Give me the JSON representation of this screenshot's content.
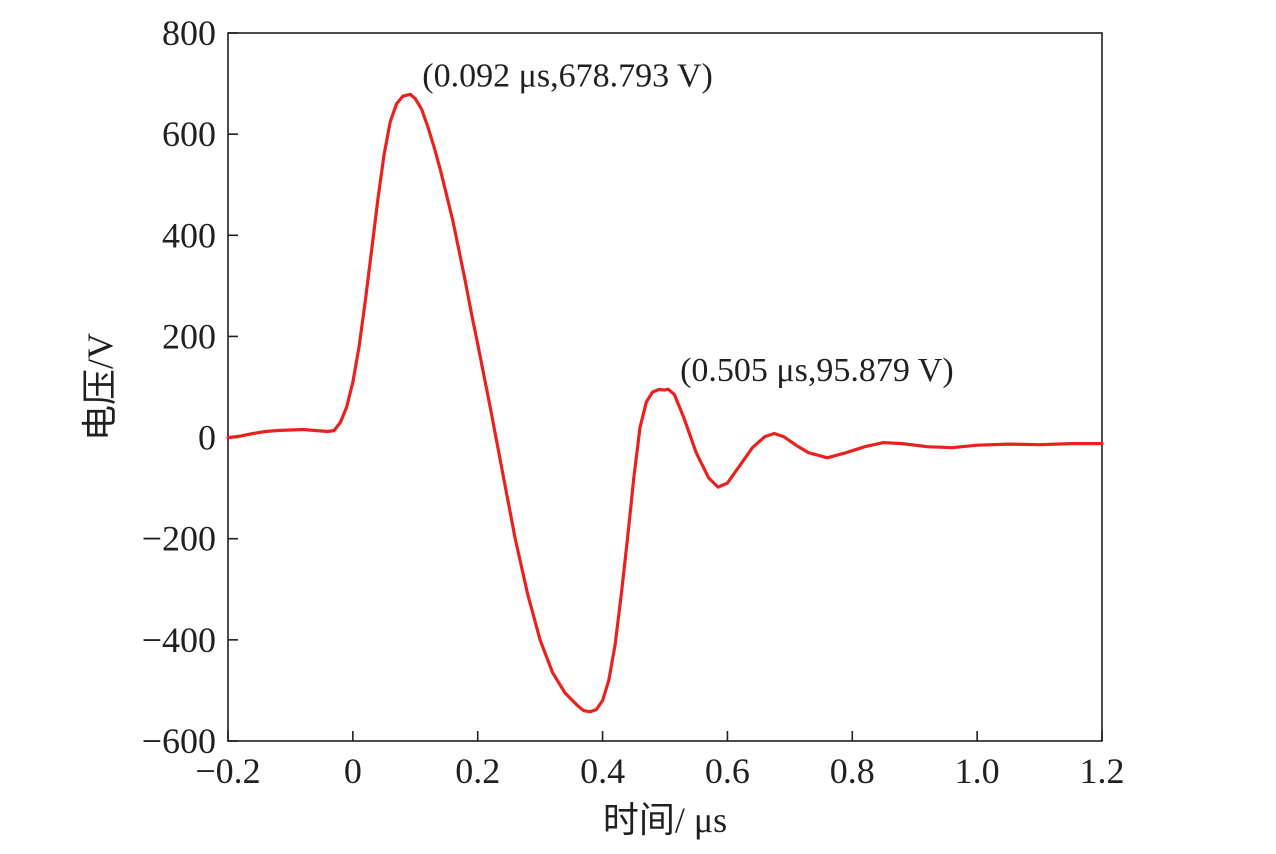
{
  "chart_data": {
    "type": "line",
    "title": "",
    "xlabel": "时间/ μs",
    "ylabel": "电压/V",
    "xlim": [
      -0.2,
      1.2
    ],
    "ylim": [
      -600,
      800
    ],
    "x_ticks": [
      -0.2,
      0,
      0.2,
      0.4,
      0.6,
      0.8,
      1.0,
      1.2
    ],
    "x_tick_labels": [
      "−0.2",
      "0",
      "0.2",
      "0.4",
      "0.6",
      "0.8",
      "1.0",
      "1.2"
    ],
    "y_ticks": [
      -600,
      -400,
      -200,
      0,
      200,
      400,
      600,
      800
    ],
    "y_tick_labels": [
      "−600",
      "−400",
      "−200",
      "0",
      "200",
      "400",
      "600",
      "800"
    ],
    "grid": false,
    "legend": "none",
    "series": [
      {
        "color": "#e8231f",
        "x": [
          -0.2,
          -0.18,
          -0.16,
          -0.14,
          -0.12,
          -0.1,
          -0.08,
          -0.06,
          -0.04,
          -0.03,
          -0.02,
          -0.01,
          0.0,
          0.01,
          0.02,
          0.03,
          0.04,
          0.05,
          0.06,
          0.07,
          0.08,
          0.092,
          0.1,
          0.11,
          0.12,
          0.13,
          0.14,
          0.15,
          0.16,
          0.17,
          0.18,
          0.19,
          0.2,
          0.22,
          0.24,
          0.26,
          0.28,
          0.3,
          0.32,
          0.34,
          0.36,
          0.37,
          0.38,
          0.39,
          0.4,
          0.41,
          0.42,
          0.43,
          0.44,
          0.45,
          0.46,
          0.47,
          0.48,
          0.49,
          0.5,
          0.505,
          0.515,
          0.53,
          0.55,
          0.57,
          0.585,
          0.6,
          0.62,
          0.64,
          0.66,
          0.675,
          0.69,
          0.71,
          0.73,
          0.76,
          0.79,
          0.82,
          0.85,
          0.88,
          0.92,
          0.96,
          1.0,
          1.05,
          1.1,
          1.15,
          1.2
        ],
        "y": [
          0,
          3,
          8,
          12,
          14,
          15,
          16,
          14,
          12,
          14,
          30,
          60,
          110,
          180,
          270,
          370,
          470,
          560,
          625,
          660,
          675,
          678.793,
          670,
          650,
          615,
          575,
          530,
          480,
          430,
          370,
          310,
          245,
          185,
          60,
          -70,
          -200,
          -310,
          -400,
          -465,
          -505,
          -530,
          -540,
          -542,
          -538,
          -520,
          -480,
          -410,
          -310,
          -200,
          -80,
          20,
          70,
          90,
          95,
          94,
          95.879,
          85,
          40,
          -30,
          -80,
          -98,
          -90,
          -55,
          -20,
          2,
          8,
          2,
          -15,
          -30,
          -40,
          -30,
          -18,
          -10,
          -12,
          -18,
          -20,
          -15,
          -13,
          -14,
          -12,
          -12
        ]
      }
    ],
    "annotations": [
      {
        "text": "(0.092 μs,678.793 V)",
        "x": 0.092,
        "y": 678.793
      },
      {
        "text": "(0.505 μs,95.879 V)",
        "x": 0.505,
        "y": 95.879
      }
    ]
  }
}
